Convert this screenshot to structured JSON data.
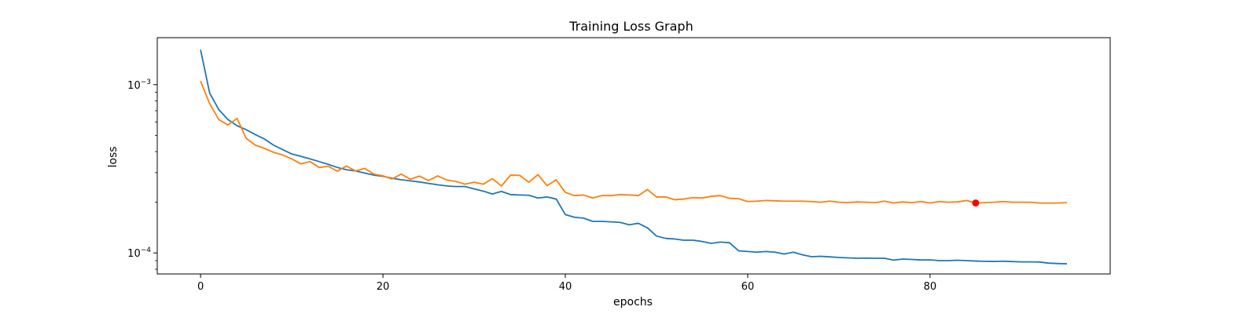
{
  "chart_data": {
    "type": "line",
    "title": "Training Loss Graph",
    "xlabel": "epochs",
    "ylabel": "loss",
    "xlim": [
      -4.75,
      99.75
    ],
    "ylim": [
      7.5e-05,
      0.0019
    ],
    "yscale": "log",
    "grid": false,
    "legend": "none",
    "xticks": [
      0,
      20,
      40,
      60,
      80
    ],
    "yticks": [
      {
        "value": 0.001,
        "mantissa": "10",
        "exponent": "−3"
      },
      {
        "value": 0.0001,
        "mantissa": "10",
        "exponent": "−4"
      }
    ],
    "series": [
      {
        "color": "#1f77b4",
        "x": [
          0,
          1,
          2,
          3,
          4,
          5,
          6,
          7,
          8,
          9,
          10,
          11,
          12,
          13,
          14,
          15,
          16,
          17,
          18,
          19,
          20,
          21,
          22,
          23,
          24,
          25,
          26,
          27,
          28,
          29,
          30,
          31,
          32,
          33,
          34,
          35,
          36,
          37,
          38,
          39,
          40,
          41,
          42,
          43,
          44,
          45,
          46,
          47,
          48,
          49,
          50,
          51,
          52,
          53,
          54,
          55,
          56,
          57,
          58,
          59,
          60,
          61,
          62,
          63,
          64,
          65,
          66,
          67,
          68,
          69,
          70,
          71,
          72,
          73,
          74,
          75,
          76,
          77,
          78,
          79,
          80,
          81,
          82,
          83,
          84,
          85,
          86,
          87,
          88,
          89,
          90,
          91,
          92,
          93,
          94,
          95
        ],
        "y": [
          0.00161,
          0.00089,
          0.00071,
          0.00062,
          0.00057,
          0.00054,
          0.000505,
          0.000475,
          0.000437,
          0.000411,
          0.000387,
          0.000375,
          0.000362,
          0.000349,
          0.000336,
          0.000322,
          0.000312,
          0.000307,
          0.000298,
          0.00029,
          0.000285,
          0.000278,
          0.000272,
          0.000268,
          0.000264,
          0.000259,
          0.000254,
          0.00025,
          0.000248,
          0.000248,
          0.00024,
          0.000233,
          0.000224,
          0.000232,
          0.000222,
          0.000221,
          0.00022,
          0.000212,
          0.000215,
          0.000209,
          0.000169,
          0.000163,
          0.000161,
          0.000154,
          0.000154,
          0.000153,
          0.000152,
          0.000147,
          0.00015,
          0.000141,
          0.000126,
          0.000122,
          0.000121,
          0.000119,
          0.000119,
          0.000117,
          0.000114,
          0.000116,
          0.000115,
          0.000103,
          0.000102,
          0.000101,
          0.000102,
          0.000101,
          9.85e-05,
          0.000101,
          9.75e-05,
          9.5e-05,
          9.55e-05,
          9.48e-05,
          9.4e-05,
          9.35e-05,
          9.3e-05,
          9.32e-05,
          9.3e-05,
          9.3e-05,
          9.06e-05,
          9.2e-05,
          9.15e-05,
          9.08e-05,
          9.1e-05,
          9e-05,
          9e-05,
          9.05e-05,
          9e-05,
          8.95e-05,
          8.92e-05,
          8.9e-05,
          8.93e-05,
          8.89e-05,
          8.85e-05,
          8.85e-05,
          8.83e-05,
          8.7e-05,
          8.65e-05,
          8.62e-05
        ]
      },
      {
        "color": "#ff7f0e",
        "x": [
          0,
          1,
          2,
          3,
          4,
          5,
          6,
          7,
          8,
          9,
          10,
          11,
          12,
          13,
          14,
          15,
          16,
          17,
          18,
          19,
          20,
          21,
          22,
          23,
          24,
          25,
          26,
          27,
          28,
          29,
          30,
          31,
          32,
          33,
          34,
          35,
          36,
          37,
          38,
          39,
          40,
          41,
          42,
          43,
          44,
          45,
          46,
          47,
          48,
          49,
          50,
          51,
          52,
          53,
          54,
          55,
          56,
          57,
          58,
          59,
          60,
          61,
          62,
          63,
          64,
          65,
          66,
          67,
          68,
          69,
          70,
          71,
          72,
          73,
          74,
          75,
          76,
          77,
          78,
          79,
          80,
          81,
          82,
          83,
          84,
          85,
          86,
          87,
          88,
          89,
          90,
          91,
          92,
          93,
          94,
          95
        ],
        "y": [
          0.00105,
          0.00077,
          0.00062,
          0.000575,
          0.00063,
          0.00048,
          0.000437,
          0.000418,
          0.000396,
          0.000382,
          0.000362,
          0.000338,
          0.000349,
          0.000322,
          0.000327,
          0.000306,
          0.000328,
          0.000307,
          0.000318,
          0.000294,
          0.000287,
          0.000275,
          0.000294,
          0.000274,
          0.000286,
          0.000269,
          0.000287,
          0.000271,
          0.000266,
          0.000256,
          0.000263,
          0.000256,
          0.000276,
          0.00025,
          0.00029,
          0.000289,
          0.000263,
          0.000292,
          0.000251,
          0.000272,
          0.000229,
          0.000219,
          0.000221,
          0.000212,
          0.000219,
          0.000219,
          0.000222,
          0.000221,
          0.000219,
          0.000238,
          0.000215,
          0.000215,
          0.000207,
          0.000209,
          0.000213,
          0.000212,
          0.000217,
          0.000219,
          0.000211,
          0.00021,
          0.000202,
          0.000203,
          0.000205,
          0.000204,
          0.000203,
          0.000203,
          0.000203,
          0.000202,
          0.0002,
          0.000203,
          0.0002,
          0.000199,
          0.000201,
          0.0002,
          0.000199,
          0.000203,
          0.000198,
          0.000201,
          0.000199,
          0.000202,
          0.000198,
          0.000202,
          0.0002,
          0.000201,
          0.000205,
          0.000198,
          0.000199,
          0.0002,
          0.000202,
          0.0002,
          0.0002,
          0.0002,
          0.000198,
          0.000198,
          0.000198,
          0.000199
        ]
      }
    ],
    "marker": {
      "x": 85,
      "y": 0.000198,
      "color": "#ff0000"
    }
  }
}
